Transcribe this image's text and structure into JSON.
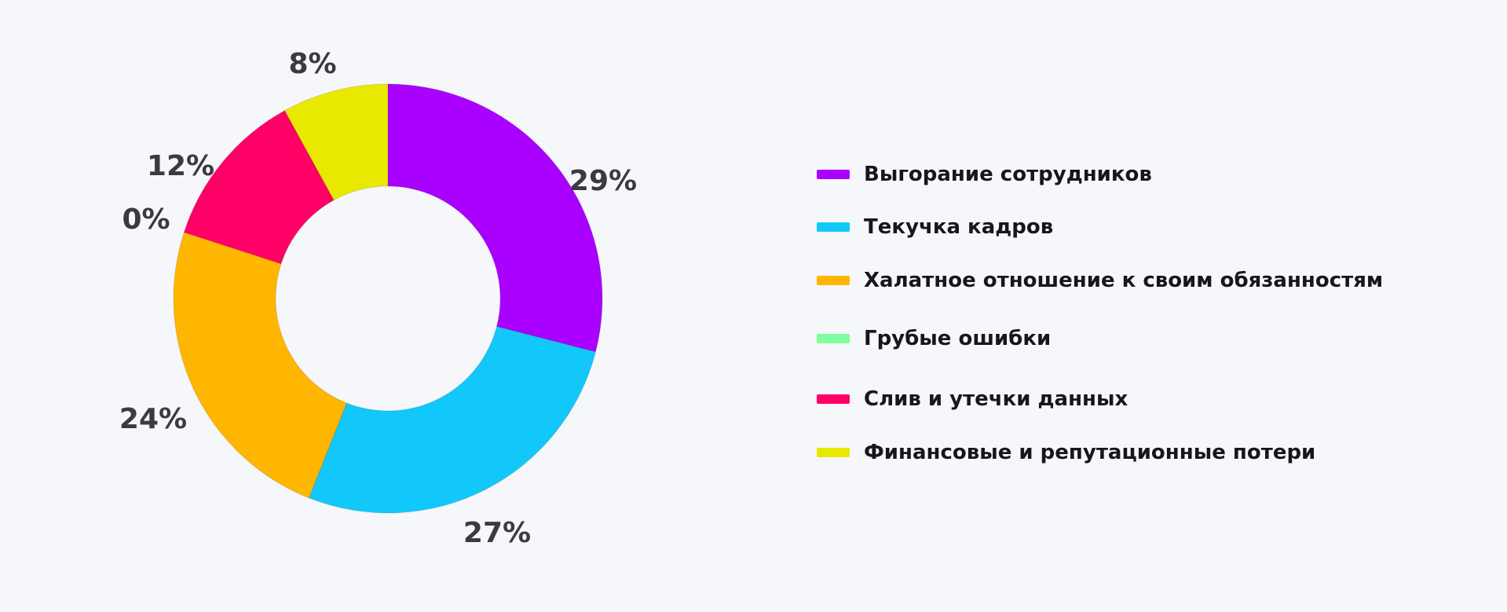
{
  "chart_data": {
    "type": "pie",
    "variant": "donut",
    "title": "",
    "legend_placement": "right",
    "series": [
      {
        "name": "Выгорание сотрудников",
        "value": 29,
        "label": "29%",
        "color": "#aa00ff"
      },
      {
        "name": "Текучка кадров",
        "value": 27,
        "label": "27%",
        "color": "#12c8fa"
      },
      {
        "name": "Халатное отношение к своим обязанностям",
        "value": 24,
        "label": "24%",
        "color": "#ffb600"
      },
      {
        "name": "Грубые ошибки",
        "value": 0,
        "label": "0%",
        "color": "#7dff9f"
      },
      {
        "name": "Слив и утечки данных",
        "value": 12,
        "label": "12%",
        "color": "#ff0066"
      },
      {
        "name": "Финансовые и репутационные потери",
        "value": 8,
        "label": "8%",
        "color": "#e8e800"
      }
    ]
  }
}
